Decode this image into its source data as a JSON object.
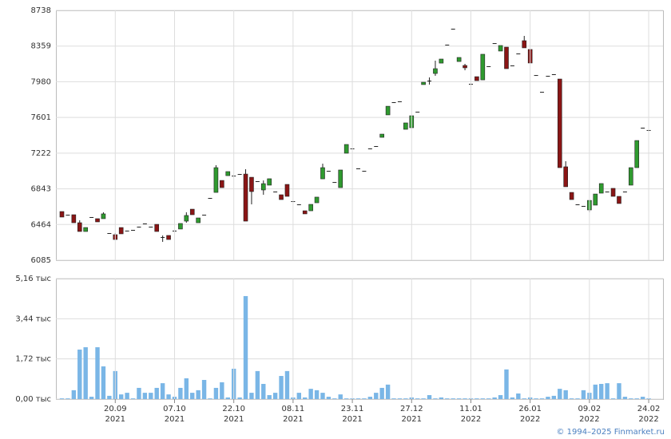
{
  "chart_data": [
    {
      "type": "candlestick",
      "up_color": "#2f9a2f",
      "down_color": "#8a1515",
      "grid": true,
      "ylim": [
        6085,
        8738
      ],
      "yticks": [
        6085,
        6464,
        6843,
        7222,
        7601,
        7980,
        8359,
        8738
      ],
      "open": [
        6602,
        6568,
        6568,
        6483,
        6390,
        6543,
        6526,
        6526,
        6373,
        6356,
        6432,
        6399,
        6407,
        6441,
        6475,
        6441,
        6466,
        6331,
        6348,
        6399,
        6416,
        6500,
        6627,
        6483,
        6568,
        6746,
        6805,
        6932,
        6983,
        6983,
        7000,
        7000,
        6966,
        6924,
        6831,
        6882,
        6814,
        6780,
        6890,
        6712,
        6678,
        6610,
        6610,
        6695,
        6949,
        7034,
        6915,
        6856,
        7221,
        7272,
        7060,
        7034,
        7272,
        7297,
        7390,
        7628,
        7763,
        7772,
        7475,
        7492,
        7662,
        7950,
        7992,
        8068,
        8178,
        8374,
        8543,
        8195,
        8153,
        7958,
        8034,
        8000,
        8145,
        8390,
        8306,
        8348,
        8153,
        8280,
        8416,
        8323,
        8051,
        7873,
        8043,
        8060,
        8009,
        7077,
        6805,
        6678,
        6661,
        6619,
        6670,
        6797,
        6814,
        6848,
        6763,
        6814,
        6882,
        7068,
        7492,
        7467
      ],
      "high": [
        6602,
        6568,
        6568,
        6509,
        6432,
        6543,
        6526,
        6594,
        6373,
        6373,
        6432,
        6399,
        6407,
        6441,
        6475,
        6441,
        6466,
        6348,
        6348,
        6399,
        6475,
        6594,
        6627,
        6534,
        6568,
        6746,
        7094,
        6932,
        7026,
        6983,
        7000,
        7051,
        6966,
        6924,
        6932,
        6950,
        6814,
        6780,
        6890,
        6712,
        6678,
        6610,
        6678,
        6755,
        7110,
        7034,
        6915,
        7043,
        7314,
        7272,
        7060,
        7034,
        7272,
        7297,
        7424,
        7720,
        7763,
        7772,
        7543,
        7619,
        7662,
        7975,
        8026,
        8204,
        8221,
        8374,
        8543,
        8238,
        8170,
        7958,
        8034,
        8272,
        8145,
        8390,
        8365,
        8348,
        8153,
        8280,
        8467,
        8323,
        8051,
        7873,
        8043,
        8060,
        8009,
        7136,
        6805,
        6678,
        6661,
        6720,
        6788,
        6899,
        6814,
        6848,
        6763,
        6814,
        7068,
        7356,
        7492,
        7467
      ],
      "low": [
        6543,
        6568,
        6483,
        6390,
        6390,
        6543,
        6492,
        6526,
        6373,
        6305,
        6365,
        6399,
        6407,
        6441,
        6475,
        6441,
        6390,
        6280,
        6305,
        6399,
        6416,
        6483,
        6568,
        6483,
        6568,
        6746,
        6805,
        6856,
        6983,
        6983,
        7000,
        6500,
        6678,
        6924,
        6780,
        6882,
        6814,
        6729,
        6763,
        6712,
        6678,
        6577,
        6610,
        6695,
        6949,
        7034,
        6915,
        6856,
        7221,
        7272,
        7060,
        7034,
        7272,
        7297,
        7390,
        7628,
        7763,
        7772,
        7475,
        7492,
        7662,
        7950,
        7950,
        8043,
        8178,
        8374,
        8543,
        8195,
        8102,
        7958,
        7992,
        8000,
        8145,
        8390,
        8306,
        8119,
        8153,
        8280,
        8340,
        8179,
        8051,
        7873,
        8043,
        8060,
        7068,
        6865,
        6729,
        6678,
        6661,
        6594,
        6670,
        6797,
        6814,
        6763,
        6687,
        6814,
        6882,
        7068,
        7492,
        7467
      ],
      "close": [
        6543,
        6568,
        6483,
        6390,
        6432,
        6543,
        6492,
        6577,
        6373,
        6305,
        6365,
        6399,
        6407,
        6441,
        6475,
        6441,
        6390,
        6331,
        6305,
        6399,
        6475,
        6560,
        6568,
        6534,
        6568,
        6746,
        7068,
        6856,
        7026,
        6983,
        7000,
        6500,
        6814,
        6924,
        6898,
        6950,
        6814,
        6729,
        6763,
        6712,
        6678,
        6577,
        6678,
        6755,
        7068,
        7034,
        6915,
        7043,
        7314,
        7272,
        7060,
        7034,
        7272,
        7297,
        7424,
        7720,
        7763,
        7772,
        7543,
        7619,
        7662,
        7975,
        7992,
        8119,
        8221,
        8374,
        8543,
        8238,
        8128,
        7958,
        7992,
        8272,
        8145,
        8390,
        8365,
        8119,
        8153,
        8280,
        8340,
        8179,
        8051,
        7873,
        8043,
        8060,
        7068,
        6865,
        6729,
        6678,
        6661,
        6720,
        6788,
        6899,
        6814,
        6763,
        6687,
        6814,
        7068,
        7356,
        7492,
        7467
      ]
    },
    {
      "type": "bar",
      "color": "#7ab6e6",
      "grid": true,
      "ylim": [
        0,
        5.16
      ],
      "yticks": [
        {
          "value": 0,
          "label": "0,00 тыс"
        },
        {
          "value": 1.72,
          "label": "1,72 тыс"
        },
        {
          "value": 3.44,
          "label": "3,44 тыс"
        },
        {
          "value": 5.16,
          "label": "5,16 тыс"
        }
      ],
      "categories": [
        null,
        null,
        null,
        null,
        null,
        null,
        null,
        null,
        null,
        [
          "20.09",
          "2021"
        ],
        null,
        null,
        null,
        null,
        null,
        null,
        null,
        null,
        null,
        [
          "07.10",
          "2021"
        ],
        null,
        null,
        null,
        null,
        null,
        null,
        null,
        null,
        null,
        [
          "22.10",
          "2021"
        ],
        null,
        null,
        null,
        null,
        null,
        null,
        null,
        null,
        null,
        [
          "08.11",
          "2021"
        ],
        null,
        null,
        null,
        null,
        null,
        null,
        null,
        null,
        null,
        [
          "23.11",
          "2021"
        ],
        null,
        null,
        null,
        null,
        null,
        null,
        null,
        null,
        null,
        [
          "27.12",
          "2021"
        ],
        null,
        null,
        null,
        null,
        null,
        null,
        null,
        null,
        null,
        [
          "11.01",
          "2022"
        ],
        null,
        null,
        null,
        null,
        null,
        null,
        null,
        null,
        null,
        [
          "26.01",
          "2022"
        ],
        null,
        null,
        null,
        null,
        null,
        null,
        null,
        null,
        null,
        [
          "09.02",
          "2022"
        ],
        null,
        null,
        null,
        null,
        null,
        null,
        null,
        null,
        null,
        [
          "24.02",
          "2022"
        ]
      ],
      "values": [
        0.03,
        0.03,
        0.38,
        2.12,
        2.22,
        0.1,
        2.22,
        1.4,
        0.14,
        1.2,
        0.2,
        0.27,
        0.03,
        0.48,
        0.27,
        0.27,
        0.48,
        0.68,
        0.2,
        0.1,
        0.48,
        0.89,
        0.27,
        0.38,
        0.82,
        0.03,
        0.48,
        0.72,
        0.07,
        1.3,
        0.07,
        4.41,
        0.27,
        1.2,
        0.65,
        0.17,
        0.27,
        0.99,
        1.2,
        0.07,
        0.27,
        0.07,
        0.44,
        0.38,
        0.27,
        0.1,
        0.03,
        0.2,
        0.03,
        0.03,
        0.03,
        0.03,
        0.1,
        0.27,
        0.48,
        0.62,
        0.03,
        0.03,
        0.03,
        0.07,
        0.03,
        0.03,
        0.17,
        0.03,
        0.07,
        0.03,
        0.03,
        0.03,
        0.03,
        0.03,
        0.03,
        0.03,
        0.03,
        0.07,
        0.17,
        1.27,
        0.07,
        0.24,
        0.03,
        0.07,
        0.03,
        0.03,
        0.1,
        0.14,
        0.44,
        0.38,
        0.03,
        0.03,
        0.38,
        0.27,
        0.62,
        0.65,
        0.68,
        0.03,
        0.68,
        0.1,
        0.03,
        0.03,
        0.1,
        0.03
      ]
    }
  ],
  "footer": "© 1994–2025 Finmarket.ru"
}
